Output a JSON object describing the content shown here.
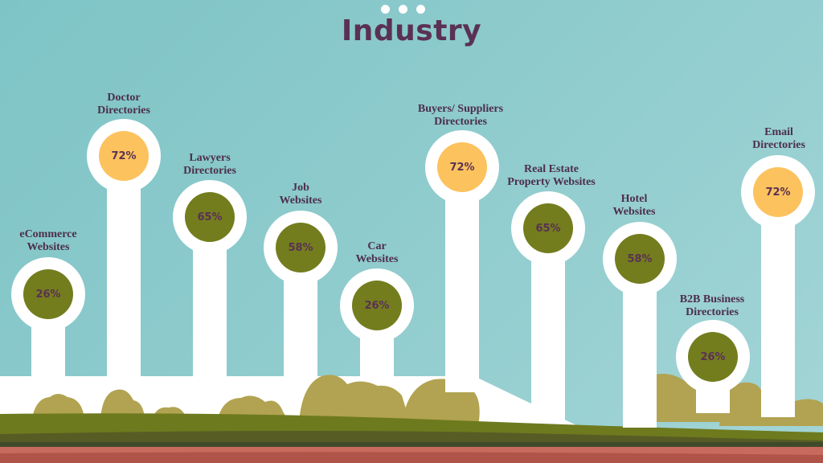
{
  "title": "Industry",
  "colors": {
    "high": "#fcc25e",
    "mid": "#737d1e",
    "text": "#5a3154"
  },
  "items": [
    {
      "label_line1": "eCommerce",
      "label_line2": "Websites",
      "value": "26%",
      "tier": "mid"
    },
    {
      "label_line1": "Doctor",
      "label_line2": "Directories",
      "value": "72%",
      "tier": "high"
    },
    {
      "label_line1": "Lawyers",
      "label_line2": "Directories",
      "value": "65%",
      "tier": "mid"
    },
    {
      "label_line1": "Job",
      "label_line2": "Websites",
      "value": "58%",
      "tier": "mid"
    },
    {
      "label_line1": "Car",
      "label_line2": "Websites",
      "value": "26%",
      "tier": "mid"
    },
    {
      "label_line1": "Buyers/ Suppliers",
      "label_line2": "Directories",
      "value": "72%",
      "tier": "high"
    },
    {
      "label_line1": "Real Estate",
      "label_line2": "Property Websites",
      "value": "65%",
      "tier": "mid"
    },
    {
      "label_line1": "Hotel",
      "label_line2": "Websites",
      "value": "58%",
      "tier": "mid"
    },
    {
      "label_line1": "B2B Business",
      "label_line2": "Directories",
      "value": "26%",
      "tier": "mid"
    },
    {
      "label_line1": "Email",
      "label_line2": "Directories",
      "value": "72%",
      "tier": "high"
    }
  ]
}
